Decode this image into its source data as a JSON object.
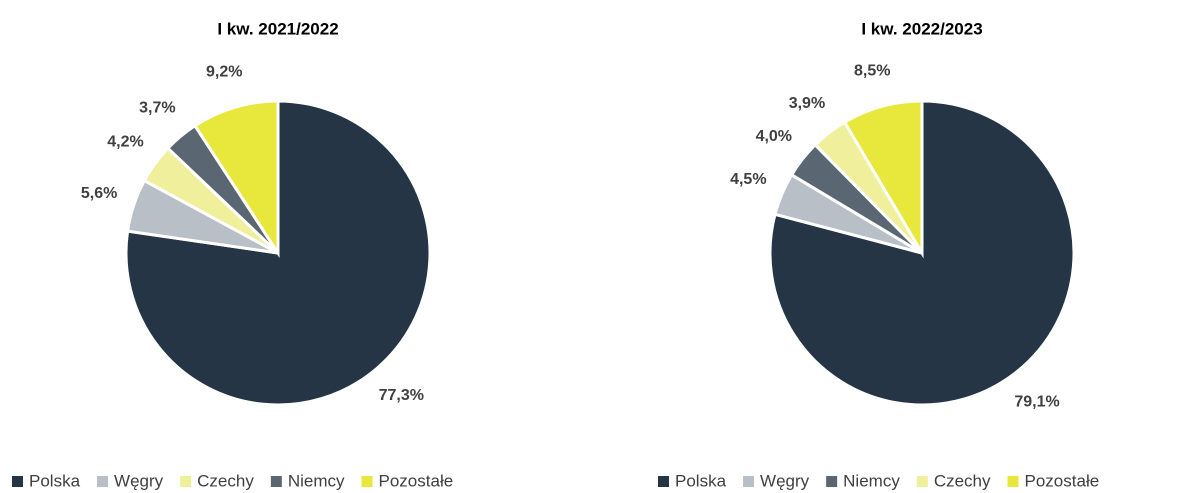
{
  "chart_data": [
    {
      "type": "pie",
      "title": "I kw. 2021/2022",
      "categories": [
        "Polska",
        "Węgry",
        "Czechy",
        "Niemcy",
        "Pozostałe"
      ],
      "values": [
        77.3,
        5.6,
        4.2,
        3.7,
        9.2
      ],
      "value_labels": [
        "77,3%",
        "5,6%",
        "4,2%",
        "3,7%",
        "9,2%"
      ],
      "colors": [
        "#253545",
        "#b8bfc6",
        "#f0f09c",
        "#5a6672",
        "#e8e83c"
      ],
      "legend": "bottom"
    },
    {
      "type": "pie",
      "title": "I kw. 2022/2023",
      "categories": [
        "Polska",
        "Węgry",
        "Niemcy",
        "Czechy",
        "Pozostałe"
      ],
      "values": [
        79.1,
        4.5,
        4.0,
        3.9,
        8.5
      ],
      "value_labels": [
        "79,1%",
        "4,5%",
        "4,0%",
        "3,9%",
        "8,5%"
      ],
      "colors": [
        "#253545",
        "#b8bfc6",
        "#5a6672",
        "#f0f09c",
        "#e8e83c"
      ],
      "legend": "bottom"
    }
  ]
}
